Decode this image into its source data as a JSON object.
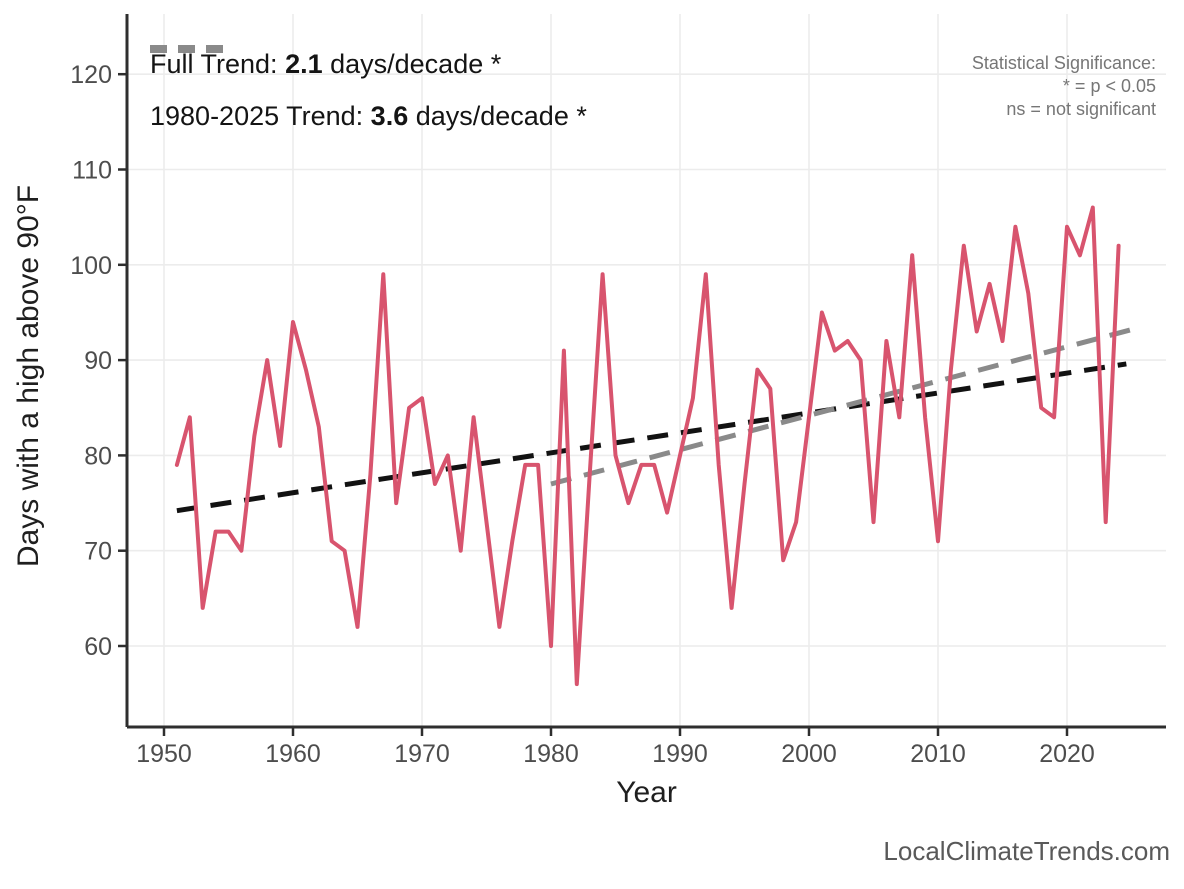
{
  "colors": {
    "series": "#d8546e",
    "trend_full": "#121212",
    "trend_recent": "#8a8a8a",
    "gridline": "#ececec",
    "spine": "#2e2e2e",
    "tick_label": "#4d4d4d"
  },
  "legend": {
    "items": [
      {
        "prefix": "Full Trend: ",
        "value": "2.1",
        "suffix": " days/decade *",
        "color": "#121212"
      },
      {
        "prefix": "1980-2025 Trend: ",
        "value": "3.6",
        "suffix": " days/decade *",
        "color": "#8a8a8a"
      }
    ]
  },
  "annotation": {
    "line1": "Statistical Significance:",
    "line2": "* = p < 0.05",
    "line3": "ns = not significant"
  },
  "watermark": "LocalClimateTrends.com",
  "chart_data": {
    "type": "line",
    "title": "",
    "xlabel": "Year",
    "ylabel": "Days with a high above 90°F",
    "x_ticks": [
      1950,
      1960,
      1970,
      1980,
      1990,
      2000,
      2010,
      2020
    ],
    "y_ticks": [
      60,
      70,
      80,
      90,
      100,
      110,
      120
    ],
    "xlim": [
      1947.1,
      2027.4
    ],
    "ylim": [
      51.5,
      126.5
    ],
    "grid": true,
    "legend_position": "top-left",
    "series": {
      "name": "Days with a high above 90°F",
      "years": [
        1951,
        1952,
        1953,
        1954,
        1955,
        1956,
        1957,
        1958,
        1959,
        1960,
        1961,
        1962,
        1963,
        1964,
        1965,
        1966,
        1967,
        1968,
        1969,
        1970,
        1971,
        1972,
        1973,
        1974,
        1975,
        1976,
        1977,
        1978,
        1979,
        1980,
        1981,
        1982,
        1983,
        1984,
        1985,
        1986,
        1987,
        1988,
        1989,
        1990,
        1991,
        1992,
        1993,
        1994,
        1995,
        1996,
        1997,
        1998,
        1999,
        2000,
        2001,
        2002,
        2003,
        2004,
        2005,
        2006,
        2007,
        2008,
        2009,
        2010,
        2011,
        2012,
        2013,
        2014,
        2015,
        2016,
        2017,
        2018,
        2019,
        2020,
        2021,
        2022,
        2023,
        2024
      ],
      "values": [
        79,
        84,
        64,
        72,
        72,
        70,
        82,
        90,
        81,
        94,
        89,
        83,
        71,
        70,
        62,
        78,
        99,
        75,
        85,
        86,
        77,
        80,
        70,
        84,
        73,
        62,
        71,
        79,
        79,
        60,
        91,
        56,
        78,
        99,
        80,
        75,
        79,
        79,
        74,
        80,
        86,
        99,
        79,
        64,
        77,
        89,
        87,
        69,
        73,
        84,
        95,
        91,
        92,
        90,
        73,
        92,
        84,
        101,
        84,
        71,
        89,
        102,
        93,
        98,
        92,
        104,
        97,
        85,
        84,
        104,
        101,
        106,
        73,
        102
      ]
    },
    "trend_lines": [
      {
        "name": "full-trend",
        "label": "Full Trend: 2.1 days/decade *",
        "slope_per_decade": 2.1,
        "significant": true,
        "x1": 1951,
        "y1": 74.2,
        "x2": 2024.6,
        "y2": 89.6,
        "color": "#121212"
      },
      {
        "name": "1980-2025-trend",
        "label": "1980-2025 Trend: 3.6 days/decade *",
        "slope_per_decade": 3.6,
        "significant": true,
        "x1": 1980,
        "y1": 77.0,
        "x2": 2025,
        "y2": 93.2,
        "color": "#8a8a8a"
      }
    ]
  }
}
